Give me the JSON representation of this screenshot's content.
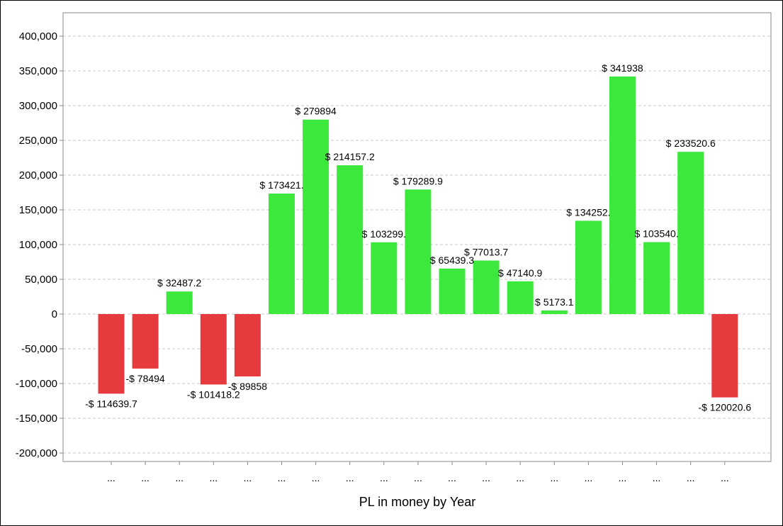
{
  "chart_data": {
    "type": "bar",
    "title": "",
    "xlabel": "PL in money by Year",
    "ylabel": "",
    "ylim": [
      -210000,
      410000
    ],
    "yticks": [
      400000,
      350000,
      300000,
      250000,
      200000,
      150000,
      100000,
      50000,
      0,
      -50000,
      -100000,
      -150000,
      -200000
    ],
    "ytick_labels": [
      "400,000",
      "350,000",
      "300,000",
      "250,000",
      "200,000",
      "150,000",
      "100,000",
      "50,000",
      "0",
      "-50,000",
      "-100,000",
      "-150,000",
      "-200,000"
    ],
    "grid": true,
    "legend": "none",
    "categories": [
      "...",
      "...",
      "...",
      "...",
      "...",
      "...",
      "...",
      "...",
      "...",
      "...",
      "...",
      "...",
      "...",
      "...",
      "...",
      "...",
      "...",
      "...",
      "..."
    ],
    "values": [
      -114639.7,
      -78494,
      32487.2,
      -101418.2,
      -89858,
      173421,
      279894,
      214157.2,
      103299,
      179289.9,
      65439.3,
      77013.7,
      47140.9,
      5173.1,
      134252,
      341938,
      103540,
      233520.6,
      -120020.6
    ],
    "data_labels": [
      "-$ 114639.7",
      "-$ 78494",
      "$ 32487.2",
      "-$ 101418.2",
      "-$ 89858",
      "$ 173421.",
      "$ 279894",
      "$ 214157.2",
      "$ 103299.",
      "$ 179289.9",
      "$ 65439.3",
      "$ 77013.7",
      "$ 47140.9",
      "$ 5173.1",
      "$ 134252.",
      "$ 341938",
      "$ 103540.",
      "$ 233520.6",
      "-$ 120020.6"
    ],
    "colors": {
      "positive": "#3de83d",
      "negative": "#e63a3e",
      "grid": "#c8c8c8",
      "axis": "#888888"
    }
  }
}
